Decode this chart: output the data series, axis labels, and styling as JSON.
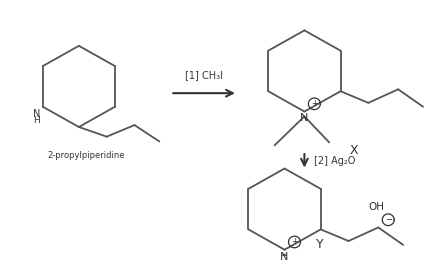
{
  "bg_color": "#ffffff",
  "line_color": "#555555",
  "text_color": "#333333",
  "fig_width": 4.3,
  "fig_height": 2.64,
  "dpi": 100,
  "reagent1": "[1] CH₃I",
  "reagent2": "[2] Ag₂O",
  "label_X": "X",
  "label_Y": "Y",
  "label_start": "2-propylpiperidine",
  "ring_lw": 1.3
}
